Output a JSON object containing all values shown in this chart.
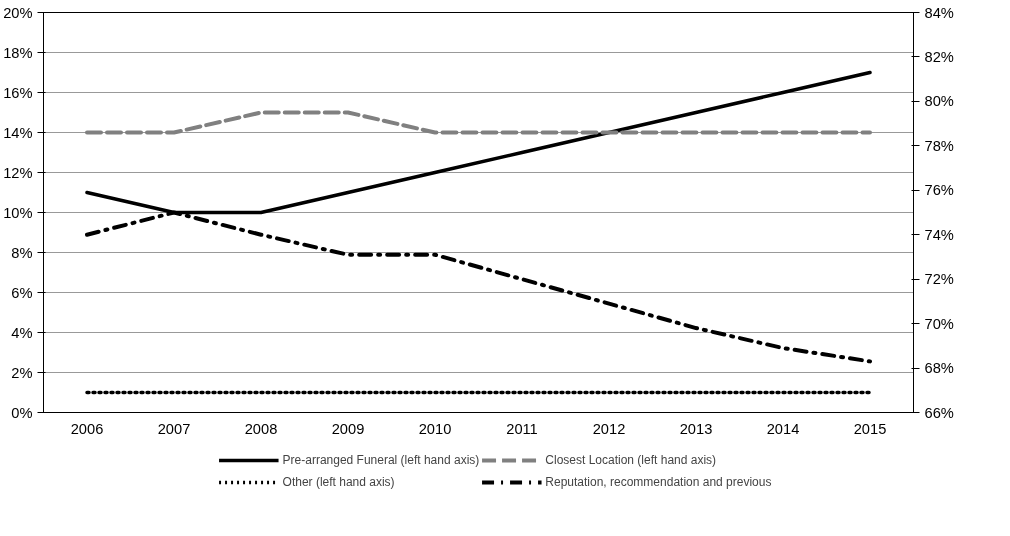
{
  "chart_data": {
    "type": "line",
    "categories": [
      "2006",
      "2007",
      "2008",
      "2009",
      "2010",
      "2011",
      "2012",
      "2013",
      "2014",
      "2015"
    ],
    "series": [
      {
        "name": "Pre-arranged Funeral (left hand axis)",
        "color": "#000000",
        "line_style": "solid",
        "values": [
          11,
          10,
          10,
          11,
          12,
          13,
          14,
          15,
          16,
          17
        ]
      },
      {
        "name": "Closest Location (left hand axis)",
        "color": "#808080",
        "line_style": "dashed",
        "values": [
          14,
          14,
          15,
          15,
          14,
          14,
          14,
          14,
          14,
          14
        ]
      },
      {
        "name": "Other (left hand axis)",
        "color": "#000000",
        "line_style": "dotted",
        "values": [
          1,
          1,
          1,
          1,
          1,
          1,
          1,
          1,
          1,
          1
        ]
      },
      {
        "name": "Reputation, recommendation and previous",
        "color": "#000000",
        "line_style": "dashdot",
        "axis": "y2",
        "values": [
          74,
          75,
          74,
          73.1,
          73.1,
          72,
          70.9,
          69.8,
          68.9,
          68.3
        ]
      }
    ],
    "ylim": [
      0,
      20
    ],
    "yticks": [
      {
        "value": 0,
        "label": "0%"
      },
      {
        "value": 2,
        "label": "2%"
      },
      {
        "value": 4,
        "label": "4%"
      },
      {
        "value": 6,
        "label": "6%"
      },
      {
        "value": 8,
        "label": "8%"
      },
      {
        "value": 10,
        "label": "10%"
      },
      {
        "value": 12,
        "label": "12%"
      },
      {
        "value": 14,
        "label": "14%"
      },
      {
        "value": 16,
        "label": "16%"
      },
      {
        "value": 18,
        "label": "18%"
      },
      {
        "value": 20,
        "label": "20%"
      }
    ],
    "y2lim": [
      66,
      84
    ],
    "y2ticks": [
      {
        "value": 66,
        "label": "66%"
      },
      {
        "value": 68,
        "label": "68%"
      },
      {
        "value": 70,
        "label": "70%"
      },
      {
        "value": 72,
        "label": "72%"
      },
      {
        "value": 74,
        "label": "74%"
      },
      {
        "value": 76,
        "label": "76%"
      },
      {
        "value": 78,
        "label": "78%"
      },
      {
        "value": 80,
        "label": "80%"
      },
      {
        "value": 82,
        "label": "82%"
      },
      {
        "value": 84,
        "label": "84%"
      }
    ],
    "grid": "y",
    "legend": "bottom",
    "marker": "none"
  }
}
